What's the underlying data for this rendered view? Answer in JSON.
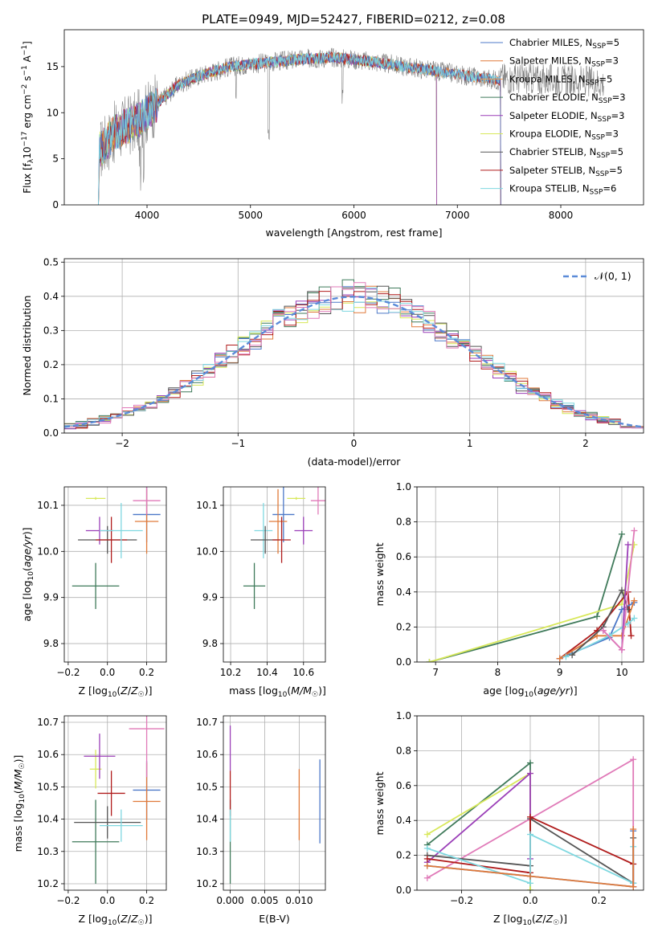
{
  "title": "PLATE=0949, MJD=52427, FIBERID=0212, z=0.08",
  "colors": {
    "Chabrier MILES": "#4c78c8",
    "Salpeter MILES": "#e07a3a",
    "Kroupa MILES": "#e89a5a",
    "Chabrier ELODIE": "#3f7a5a",
    "Salpeter ELODIE": "#9b3fb8",
    "Kroupa ELODIE": "#d8e85a",
    "Chabrier STELIB": "#555555",
    "Salpeter STELIB": "#b01c1c",
    "Kroupa STELIB": "#7fd8e0",
    "spectrum": "#808080",
    "gauss": "#5b8bd8",
    "pink": "#e07ab8"
  },
  "chart_data": [
    {
      "id": "spectrum",
      "type": "line",
      "title": "PLATE=0949, MJD=52427, FIBERID=0212, z=0.08",
      "xlabel": "wavelength [Angstrom, rest frame]",
      "ylabel": "Flux [f_λ 10^-17 erg cm^-2 s^-1 A^-1]",
      "xlim": [
        3200,
        8800
      ],
      "ylim": [
        0,
        19
      ],
      "xticks": [
        4000,
        5000,
        6000,
        7000,
        8000
      ],
      "yticks": [
        0,
        5,
        10,
        15
      ],
      "grid": false,
      "legend": "right",
      "legend_entries": [
        {
          "label": "Chabrier MILES",
          "nssp": "5"
        },
        {
          "label": "Salpeter MILES",
          "nssp": "3"
        },
        {
          "label": "Kroupa MILES",
          "nssp": "5"
        },
        {
          "label": "Chabrier ELODIE",
          "nssp": "3"
        },
        {
          "label": "Salpeter ELODIE",
          "nssp": "3"
        },
        {
          "label": "Kroupa ELODIE",
          "nssp": "3"
        },
        {
          "label": "Chabrier STELIB",
          "nssp": "5"
        },
        {
          "label": "Salpeter STELIB",
          "nssp": "5"
        },
        {
          "label": "Kroupa STELIB",
          "nssp": "6"
        }
      ],
      "continuum": [
        [
          3550,
          6
        ],
        [
          3700,
          8
        ],
        [
          3900,
          9
        ],
        [
          4100,
          11
        ],
        [
          4300,
          13
        ],
        [
          4500,
          14
        ],
        [
          4800,
          15
        ],
        [
          5200,
          15.5
        ],
        [
          5500,
          15.8
        ],
        [
          5800,
          16
        ],
        [
          6200,
          15.5
        ],
        [
          6500,
          15
        ],
        [
          6800,
          14.5
        ],
        [
          7100,
          14
        ],
        [
          7400,
          13.5
        ]
      ],
      "model_extent": {
        "chabrier_end": 8400,
        "stelib_end": 7420,
        "elodie_end": 6800
      }
    },
    {
      "id": "residuals",
      "type": "line",
      "xlabel": "(data-model)/error",
      "ylabel": "Normed distribution",
      "xlim": [
        -2.5,
        2.5
      ],
      "ylim": [
        0,
        0.51
      ],
      "xticks": [
        -2,
        -1,
        0,
        1,
        2
      ],
      "yticks": [
        0.0,
        0.1,
        0.2,
        0.3,
        0.4,
        0.5
      ],
      "grid": true,
      "legend": "top-right",
      "gauss_label": "𝒩(0, 1)"
    },
    {
      "id": "age_vs_Z",
      "type": "scatter",
      "xlabel": "Z [log10(Z/Z☉)]",
      "ylabel": "age [log10(age/yr)]",
      "xlim": [
        -0.22,
        0.3
      ],
      "ylim": [
        9.76,
        10.14
      ],
      "xticks": [
        -0.2,
        0.0,
        0.2
      ],
      "yticks": [
        9.8,
        9.9,
        10.0,
        10.1
      ],
      "points": [
        {
          "series": "Chabrier ELODIE",
          "x": -0.06,
          "y": 9.925,
          "xerr": 0.12,
          "yerr": 0.05
        },
        {
          "series": "Kroupa ELODIE",
          "x": -0.06,
          "y": 10.115,
          "xerr": 0.05,
          "yerr": 0.003
        },
        {
          "series": "Salpeter ELODIE",
          "x": -0.04,
          "y": 10.045,
          "xerr": 0.07,
          "yerr": 0.03
        },
        {
          "series": "Chabrier STELIB",
          "x": 0.0,
          "y": 10.025,
          "xerr": 0.15,
          "yerr": 0.03
        },
        {
          "series": "Salpeter STELIB",
          "x": 0.02,
          "y": 10.025,
          "xerr": 0.08,
          "yerr": 0.05
        },
        {
          "series": "Kroupa STELIB",
          "x": 0.07,
          "y": 10.045,
          "xerr": 0.11,
          "yerr": 0.06
        },
        {
          "series": "Chabrier MILES",
          "x": 0.2,
          "y": 10.08,
          "xerr": 0.07,
          "yerr": 0.06
        },
        {
          "series": "Salpeter MILES",
          "x": 0.2,
          "y": 10.065,
          "xerr": 0.06,
          "yerr": 0.07
        },
        {
          "series": "pink",
          "x": 0.2,
          "y": 10.11,
          "xerr": 0.07,
          "yerr": 0.03
        }
      ]
    },
    {
      "id": "age_vs_mass",
      "type": "scatter",
      "xlabel": "mass [log10(M/M☉)]",
      "ylabel": "",
      "xlim": [
        10.16,
        10.72
      ],
      "ylim": [
        9.76,
        10.14
      ],
      "xticks": [
        10.2,
        10.4,
        10.6
      ],
      "yticks": [
        9.8,
        9.9,
        10.0,
        10.1
      ],
      "points": [
        {
          "series": "Chabrier ELODIE",
          "x": 10.33,
          "y": 9.925,
          "xerr": 0.06,
          "yerr": 0.05
        },
        {
          "series": "Kroupa STELIB",
          "x": 10.38,
          "y": 10.045,
          "xerr": 0.05,
          "yerr": 0.06
        },
        {
          "series": "Chabrier STELIB",
          "x": 10.39,
          "y": 10.025,
          "xerr": 0.08,
          "yerr": 0.03
        },
        {
          "series": "Chabrier MILES",
          "x": 10.49,
          "y": 10.08,
          "xerr": 0.06,
          "yerr": 0.06
        },
        {
          "series": "Salpeter MILES",
          "x": 10.46,
          "y": 10.065,
          "xerr": 0.05,
          "yerr": 0.07
        },
        {
          "series": "Salpeter STELIB",
          "x": 10.48,
          "y": 10.025,
          "xerr": 0.05,
          "yerr": 0.05
        },
        {
          "series": "Kroupa ELODIE",
          "x": 10.56,
          "y": 10.115,
          "xerr": 0.05,
          "yerr": 0.003
        },
        {
          "series": "Salpeter ELODIE",
          "x": 10.6,
          "y": 10.045,
          "xerr": 0.05,
          "yerr": 0.03
        },
        {
          "series": "pink",
          "x": 10.68,
          "y": 10.11,
          "xerr": 0.04,
          "yerr": 0.03
        }
      ]
    },
    {
      "id": "weight_vs_age",
      "type": "line",
      "xlabel": "age [log10(age/yr)]",
      "ylabel": "mass weight",
      "xlim": [
        6.7,
        10.35
      ],
      "ylim": [
        0,
        1.0
      ],
      "xticks": [
        7,
        8,
        9,
        10
      ],
      "yticks": [
        0.0,
        0.2,
        0.4,
        0.6,
        0.8,
        1.0
      ],
      "series": [
        {
          "name": "Chabrier ELODIE",
          "x": [
            6.9,
            9.6,
            10.0
          ],
          "y": [
            0.0,
            0.26,
            0.73
          ]
        },
        {
          "name": "Kroupa ELODIE",
          "x": [
            6.9,
            10.0,
            10.2
          ],
          "y": [
            0.0,
            0.33,
            0.67
          ]
        },
        {
          "name": "Salpeter STELIB",
          "x": [
            9.0,
            9.6,
            10.1,
            10.15
          ],
          "y": [
            0.02,
            0.18,
            0.4,
            0.15
          ]
        },
        {
          "name": "Chabrier MILES",
          "x": [
            9.0,
            9.8,
            10.0,
            10.2
          ],
          "y": [
            0.02,
            0.14,
            0.3,
            0.34
          ]
        },
        {
          "name": "Salpeter MILES",
          "x": [
            9.0,
            9.6,
            10.0,
            10.2
          ],
          "y": [
            0.02,
            0.15,
            0.15,
            0.35
          ]
        },
        {
          "name": "Kroupa STELIB",
          "x": [
            9.1,
            9.8,
            10.1,
            10.2
          ],
          "y": [
            0.03,
            0.15,
            0.22,
            0.25
          ]
        },
        {
          "name": "Chabrier STELIB",
          "x": [
            9.2,
            9.7,
            10.0,
            10.1
          ],
          "y": [
            0.04,
            0.2,
            0.41,
            0.3
          ]
        },
        {
          "name": "Salpeter ELODIE",
          "x": [
            9.7,
            10.0,
            10.1
          ],
          "y": [
            0.18,
            0.07,
            0.67
          ]
        },
        {
          "name": "pink",
          "x": [
            9.7,
            10.0,
            10.2
          ],
          "y": [
            0.18,
            0.07,
            0.75
          ]
        }
      ]
    },
    {
      "id": "mass_vs_Z",
      "type": "scatter",
      "xlabel": "Z [log10(Z/Z☉)]",
      "ylabel": "mass [log10(M/M☉)]",
      "xlim": [
        -0.22,
        0.3
      ],
      "ylim": [
        10.18,
        10.72
      ],
      "xticks": [
        -0.2,
        0.0,
        0.2
      ],
      "yticks": [
        10.2,
        10.3,
        10.4,
        10.5,
        10.6,
        10.7
      ],
      "points": [
        {
          "series": "Chabrier ELODIE",
          "x": -0.06,
          "y": 10.33,
          "xerr": 0.12,
          "yerr": 0.13
        },
        {
          "series": "Kroupa ELODIE",
          "x": -0.06,
          "y": 10.555,
          "xerr": 0.03,
          "yerr": 0.06
        },
        {
          "series": "Salpeter ELODIE",
          "x": -0.04,
          "y": 10.595,
          "xerr": 0.08,
          "yerr": 0.07
        },
        {
          "series": "Chabrier STELIB",
          "x": 0.0,
          "y": 10.39,
          "xerr": 0.17,
          "yerr": 0.05
        },
        {
          "series": "Salpeter STELIB",
          "x": 0.02,
          "y": 10.48,
          "xerr": 0.07,
          "yerr": 0.07
        },
        {
          "series": "Kroupa STELIB",
          "x": 0.07,
          "y": 10.38,
          "xerr": 0.11,
          "yerr": 0.05
        },
        {
          "series": "Chabrier MILES",
          "x": 0.2,
          "y": 10.49,
          "xerr": 0.07,
          "yerr": 0.09
        },
        {
          "series": "Salpeter MILES",
          "x": 0.2,
          "y": 10.455,
          "xerr": 0.07,
          "yerr": 0.12
        },
        {
          "series": "pink",
          "x": 0.2,
          "y": 10.68,
          "xerr": 0.09,
          "yerr": 0.15
        }
      ]
    },
    {
      "id": "mass_vs_EBV",
      "type": "scatter",
      "xlabel": "E(B-V)",
      "ylabel": "",
      "xlim": [
        -0.001,
        0.0138
      ],
      "ylim": [
        10.18,
        10.72
      ],
      "xticks": [
        0.0,
        0.005,
        0.01
      ],
      "xtick_labels": [
        "0.000",
        "0.005",
        "0.010"
      ],
      "yticks": [
        10.2,
        10.3,
        10.4,
        10.5,
        10.6,
        10.7
      ],
      "points": [
        {
          "series": "Chabrier ELODIE",
          "x": 0.0,
          "y": 10.33,
          "yerr": 0.13
        },
        {
          "series": "Salpeter ELODIE",
          "x": 0.0,
          "y": 10.62,
          "yerr": 0.07
        },
        {
          "series": "Salpeter STELIB",
          "x": 0.0,
          "y": 10.48,
          "yerr": 0.07
        },
        {
          "series": "Kroupa STELIB",
          "x": 0.0,
          "y": 10.38,
          "yerr": 0.05
        },
        {
          "series": "Salpeter MILES",
          "x": 0.01,
          "y": 10.445,
          "yerr": 0.11
        },
        {
          "series": "Chabrier MILES",
          "x": 0.013,
          "y": 10.455,
          "yerr": 0.13
        }
      ]
    },
    {
      "id": "weight_vs_Z",
      "type": "line",
      "xlabel": "Z [log10(Z/Z☉)]",
      "ylabel": "mass weight",
      "xlim": [
        -0.33,
        0.33
      ],
      "ylim": [
        0,
        1.0
      ],
      "xticks": [
        -0.2,
        0.0,
        0.2
      ],
      "yticks": [
        0.0,
        0.2,
        0.4,
        0.6,
        0.8,
        1.0
      ],
      "series": [
        {
          "name": "Chabrier ELODIE",
          "x": [
            -0.3,
            0.0,
            0.0
          ],
          "y": [
            0.26,
            0.73,
            0.0
          ]
        },
        {
          "name": "Kroupa ELODIE",
          "x": [
            -0.3,
            0.0,
            0.0
          ],
          "y": [
            0.32,
            0.67,
            0.0
          ]
        },
        {
          "name": "Salpeter ELODIE",
          "x": [
            -0.3,
            0.0,
            0.0
          ],
          "y": [
            0.16,
            0.67,
            0.18
          ]
        },
        {
          "name": "pink",
          "x": [
            -0.3,
            0.3,
            0.3
          ],
          "y": [
            0.07,
            0.75,
            0.02
          ]
        },
        {
          "name": "Chabrier STELIB",
          "x": [
            -0.3,
            0.0,
            0.0,
            0.3,
            0.3
          ],
          "y": [
            0.2,
            0.14,
            0.41,
            0.04,
            0.3
          ]
        },
        {
          "name": "Salpeter STELIB",
          "x": [
            -0.3,
            0.0,
            0.0,
            0.3,
            0.3
          ],
          "y": [
            0.18,
            0.1,
            0.42,
            0.15,
            0.02
          ]
        },
        {
          "name": "Kroupa STELIB",
          "x": [
            -0.3,
            0.0,
            0.0,
            0.3,
            0.3
          ],
          "y": [
            0.24,
            0.04,
            0.32,
            0.04,
            0.25
          ]
        },
        {
          "name": "Chabrier MILES",
          "x": [
            -0.3,
            0.0,
            0.3,
            0.3
          ],
          "y": [
            0.14,
            0.08,
            0.02,
            0.34
          ]
        },
        {
          "name": "Salpeter MILES",
          "x": [
            -0.3,
            0.0,
            0.3,
            0.3
          ],
          "y": [
            0.14,
            0.08,
            0.02,
            0.35
          ]
        }
      ]
    }
  ]
}
